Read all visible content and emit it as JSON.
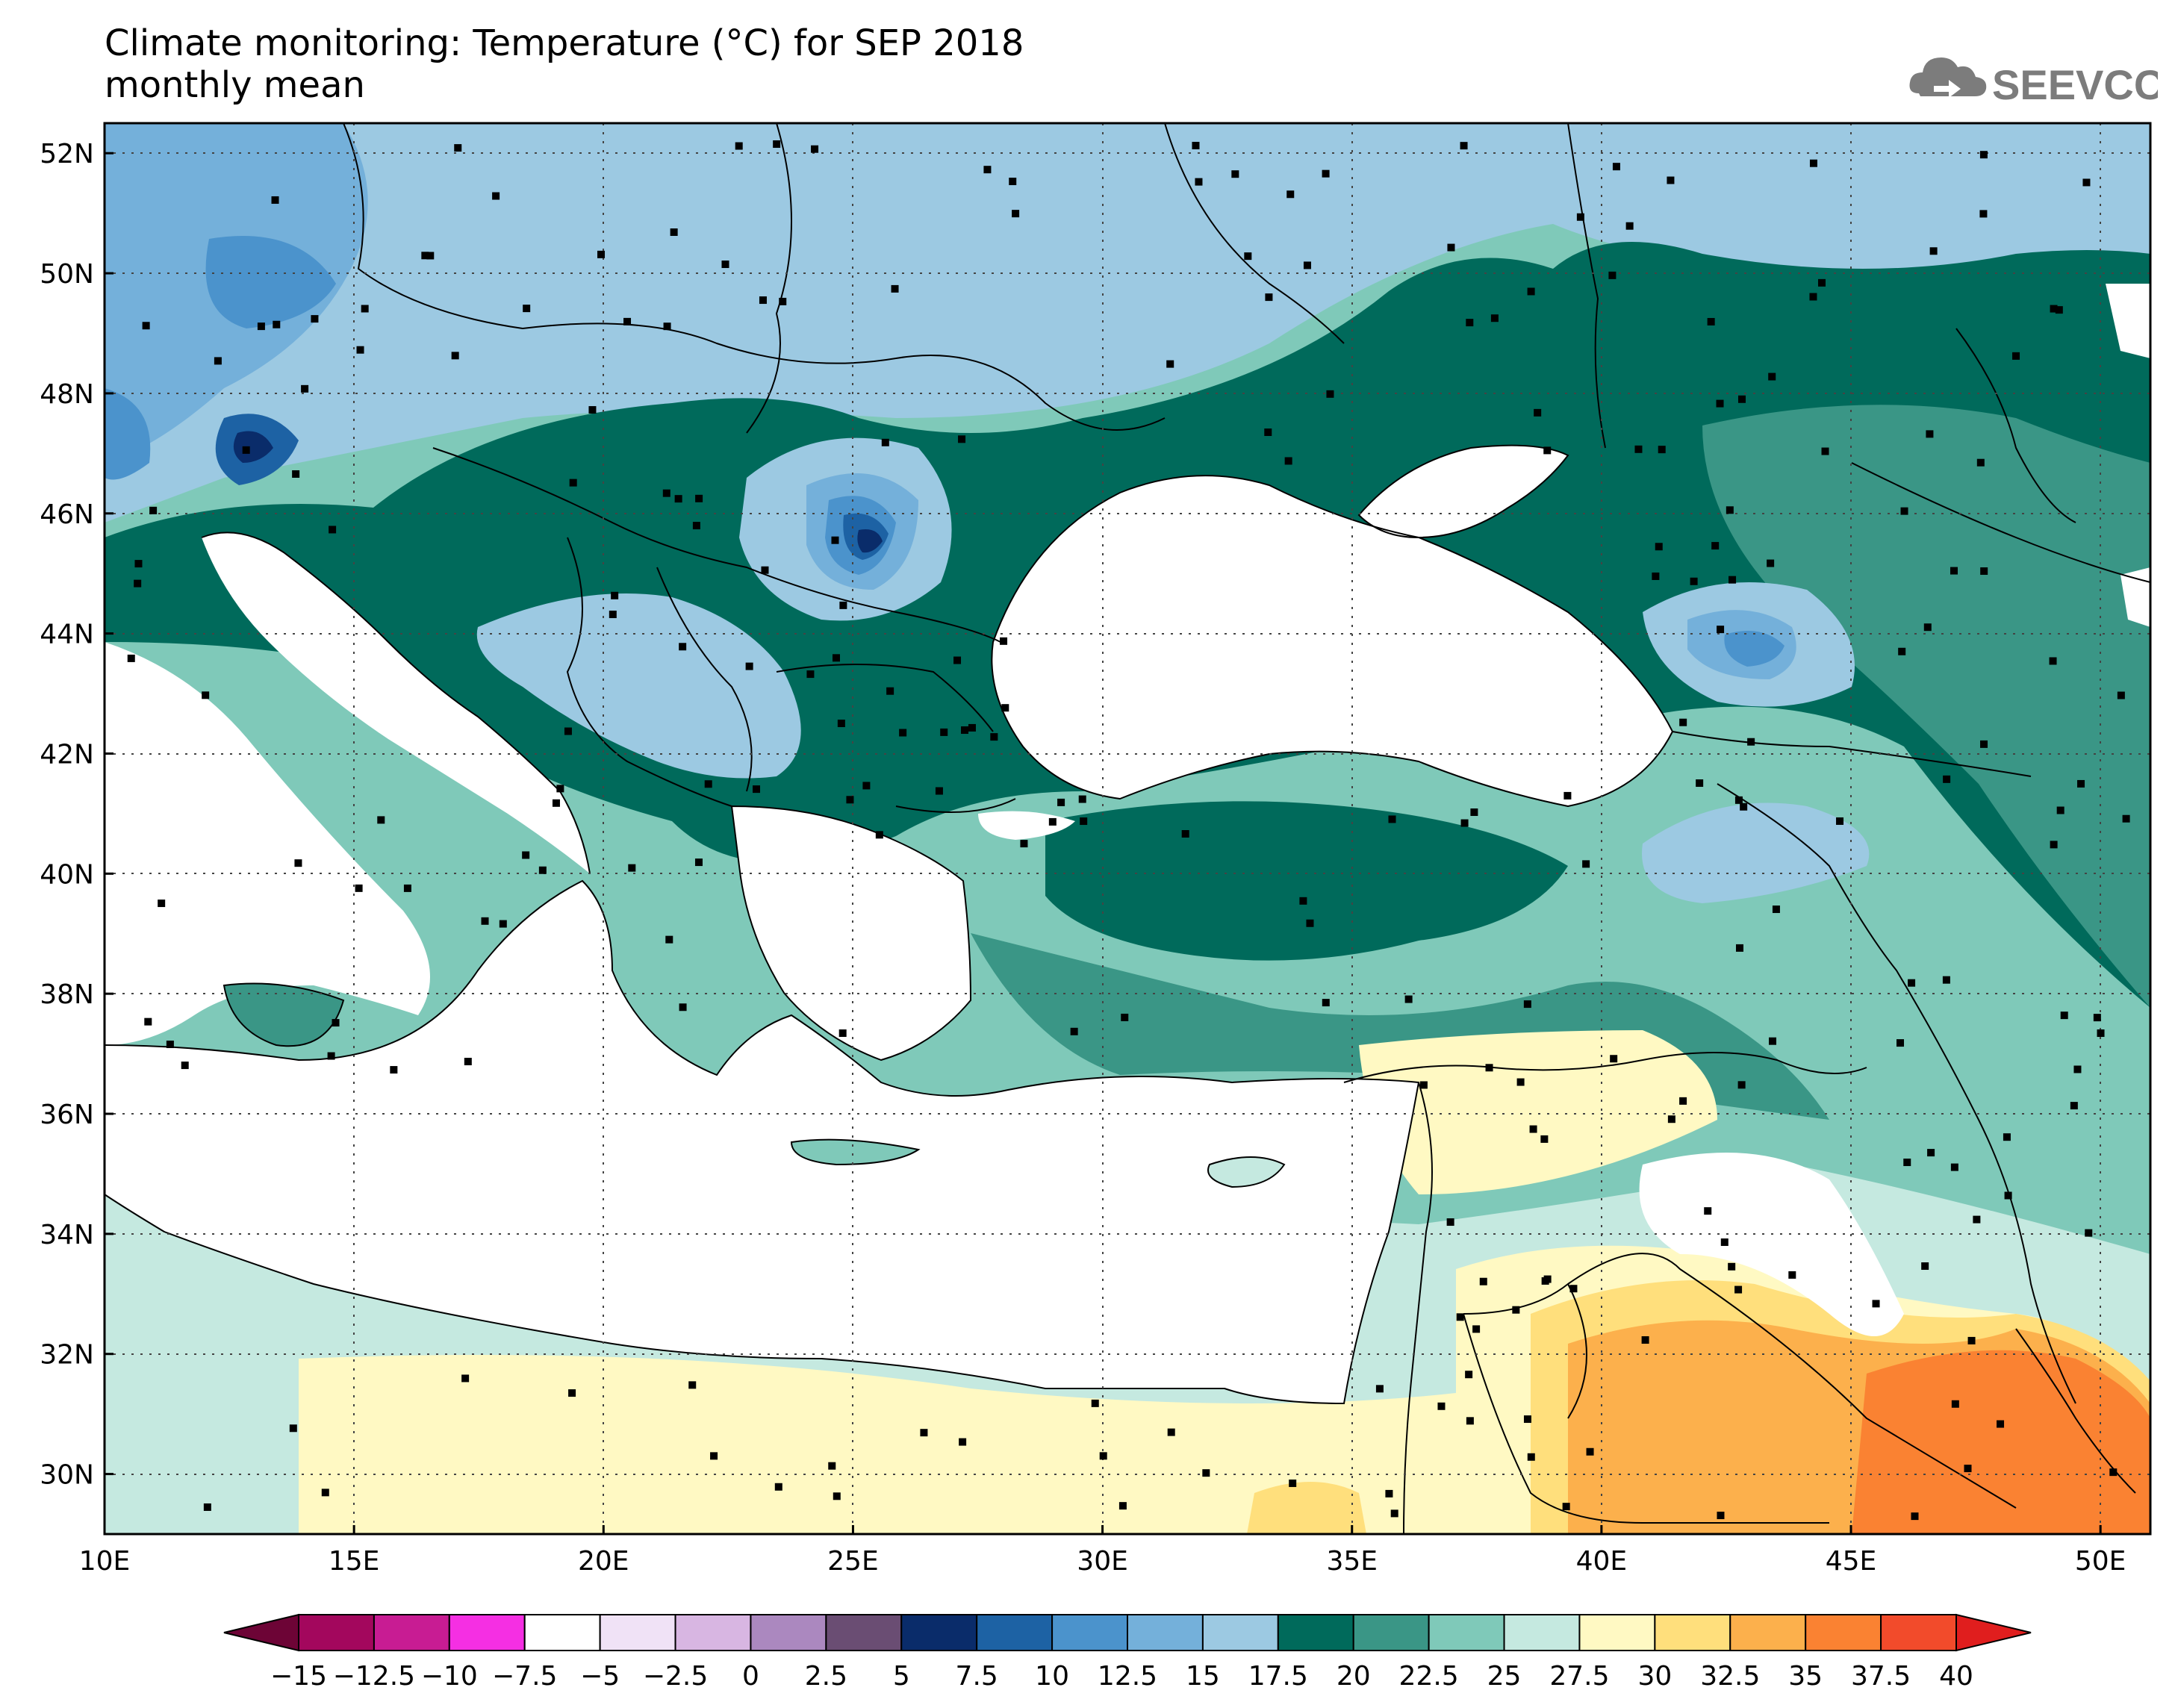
{
  "title": {
    "line1": "Climate monitoring: Temperature (°C) for SEP 2018",
    "line2": "monthly mean"
  },
  "logo": {
    "text": "SEEVCCC",
    "icon": "cloud-icon"
  },
  "map": {
    "lon_range": [
      10,
      51
    ],
    "lat_range": [
      29,
      52.5
    ],
    "lon_ticks": [
      "10E",
      "15E",
      "20E",
      "25E",
      "30E",
      "35E",
      "40E",
      "45E",
      "50E"
    ],
    "lat_ticks": [
      "30N",
      "32N",
      "34N",
      "36N",
      "38N",
      "40N",
      "42N",
      "44N",
      "46N",
      "48N",
      "50N",
      "52N"
    ],
    "gridlines": "dotted",
    "station_markers": "black squares"
  },
  "colorbar": {
    "labels": [
      "−15",
      "−12.5",
      "−10",
      "−7.5",
      "−5",
      "−2.5",
      "0",
      "2.5",
      "5",
      "7.5",
      "10",
      "12.5",
      "15",
      "17.5",
      "20",
      "22.5",
      "25",
      "27.5",
      "30",
      "32.5",
      "35",
      "37.5",
      "40"
    ],
    "colors": [
      "#a3075d",
      "#c81c93",
      "#f52fe3",
      "#ffffff",
      "#f0e2f6",
      "#d8b6e2",
      "#ab88bf",
      "#6a4d73",
      "#0a2c6a",
      "#1d62a4",
      "#4b93cc",
      "#74b0da",
      "#9cc9e2",
      "#006a5b",
      "#3a9686",
      "#7fc9b9",
      "#c5e9e0",
      "#fff9c3",
      "#ffdf7c",
      "#fcb04c",
      "#fa8232",
      "#f24b2b"
    ],
    "under_color": "#6d0436",
    "over_color": "#e01e1e"
  }
}
